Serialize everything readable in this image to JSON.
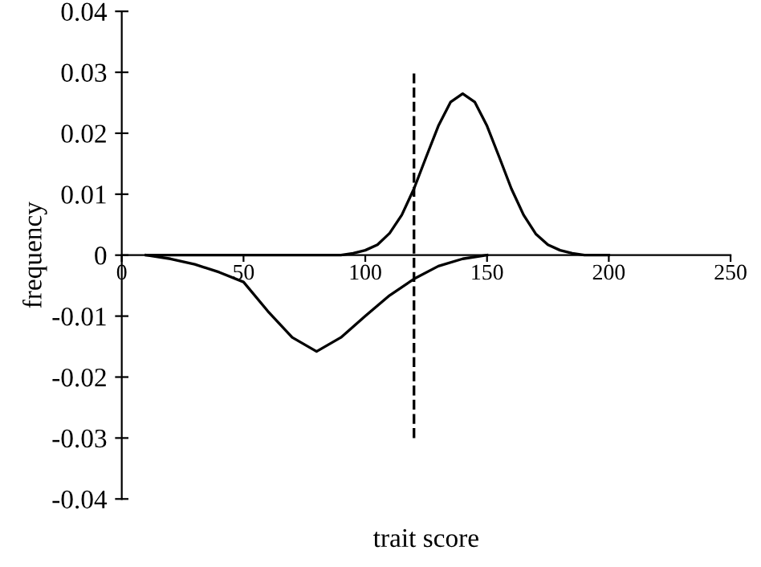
{
  "chart_data": {
    "type": "line",
    "xlabel": "trait score",
    "ylabel": "frequency",
    "xlim": [
      0,
      250
    ],
    "xticks": [
      0,
      50,
      100,
      150,
      200,
      250
    ],
    "ylim": [
      -0.04,
      0.04
    ],
    "yticks": [
      -0.04,
      -0.03,
      -0.02,
      -0.01,
      0,
      0.01,
      0.02,
      0.03,
      0.04
    ],
    "grid": false,
    "legend": false,
    "marker": "none",
    "line_style": "solid",
    "series": [
      {
        "color": "#000000",
        "x": [
          10,
          20,
          40,
          60,
          80,
          90,
          95,
          100,
          105,
          110,
          115,
          120,
          125,
          130,
          135,
          140,
          145,
          150,
          155,
          160,
          165,
          170,
          175,
          180,
          185,
          190,
          200
        ],
        "values": [
          0,
          0,
          0,
          0,
          0,
          0,
          0.0003,
          0.0008,
          0.0017,
          0.0036,
          0.0066,
          0.0109,
          0.0161,
          0.0212,
          0.0251,
          0.0265,
          0.0251,
          0.0212,
          0.0161,
          0.0109,
          0.0066,
          0.0035,
          0.0017,
          0.0008,
          0.0003,
          0,
          0
        ]
      },
      {
        "color": "#000000",
        "x": [
          10,
          20,
          30,
          40,
          50,
          60,
          70,
          80,
          90,
          100,
          110,
          120,
          130,
          140,
          150
        ],
        "values": [
          0,
          -0.0006,
          -0.0015,
          -0.0028,
          -0.0044,
          -0.0092,
          -0.0135,
          -0.0158,
          -0.0135,
          -0.01,
          -0.0066,
          -0.0039,
          -0.0018,
          -0.0006,
          0
        ]
      }
    ],
    "ref_lines": [
      {
        "axis": "x",
        "value": 120,
        "color": "#000000",
        "line_style": "dashed"
      }
    ]
  }
}
